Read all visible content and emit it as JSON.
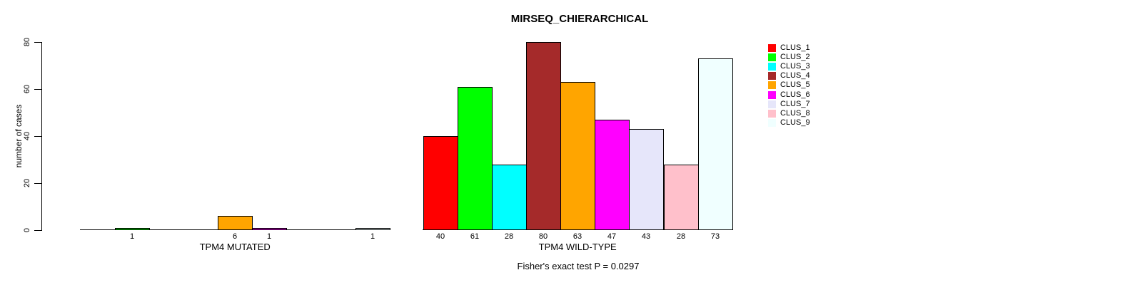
{
  "title": "MIRSEQ_CHIERARCHICAL",
  "y_axis": {
    "label": "number of cases",
    "ticks": [
      0,
      20,
      40,
      60,
      80
    ]
  },
  "footnote": "Fisher's exact test P = 0.0297",
  "legend": {
    "items": [
      {
        "label": "CLUS_1",
        "color": "#FF0000"
      },
      {
        "label": "CLUS_2",
        "color": "#00FF00"
      },
      {
        "label": "CLUS_3",
        "color": "#00FFFF"
      },
      {
        "label": "CLUS_4",
        "color": "#A52A2A"
      },
      {
        "label": "CLUS_5",
        "color": "#FFA500"
      },
      {
        "label": "CLUS_6",
        "color": "#FF00FF"
      },
      {
        "label": "CLUS_7",
        "color": "#E6E6FA"
      },
      {
        "label": "CLUS_8",
        "color": "#FFC0CB"
      },
      {
        "label": "CLUS_9",
        "color": "#F0FFFF"
      }
    ]
  },
  "chart_data": {
    "type": "bar",
    "title": "MIRSEQ_CHIERARCHICAL",
    "xlabel": "",
    "ylabel": "number of cases",
    "ylim": [
      0,
      80
    ],
    "yticks": [
      0,
      20,
      40,
      60,
      80
    ],
    "grid": false,
    "legend_position": "right",
    "bar_outline_color": "#000000",
    "categories": [
      "CLUS_1",
      "CLUS_2",
      "CLUS_3",
      "CLUS_4",
      "CLUS_5",
      "CLUS_6",
      "CLUS_7",
      "CLUS_8",
      "CLUS_9"
    ],
    "colors": [
      "#FF0000",
      "#00FF00",
      "#00FFFF",
      "#A52A2A",
      "#FFA500",
      "#FF00FF",
      "#E6E6FA",
      "#FFC0CB",
      "#F0FFFF"
    ],
    "groups": [
      {
        "label": "TPM4 MUTATED",
        "values": [
          0,
          1,
          0,
          0,
          6,
          1,
          0,
          0,
          1
        ]
      },
      {
        "label": "TPM4 WILD-TYPE",
        "values": [
          40,
          61,
          28,
          80,
          63,
          47,
          43,
          28,
          73
        ]
      }
    ],
    "footnote": "Fisher's exact test P = 0.0297"
  }
}
